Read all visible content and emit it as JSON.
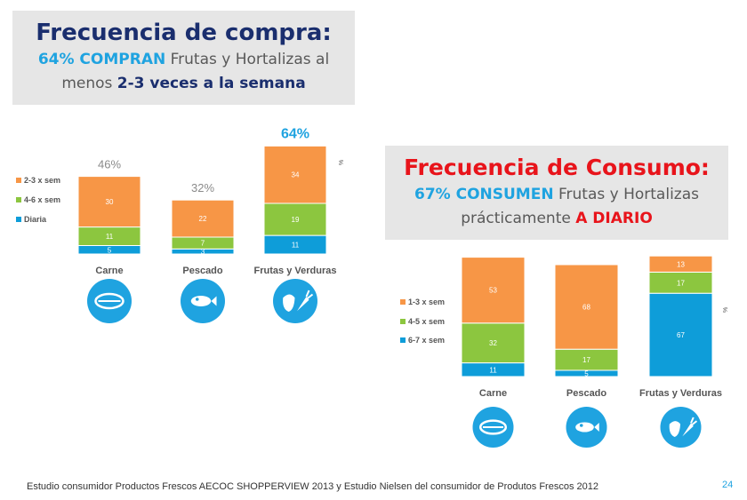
{
  "colors": {
    "orange": "#f79646",
    "green": "#8cc63f",
    "blue": "#0e9dd9",
    "title_dark": "#1a2e6e",
    "title_red": "#e8141b",
    "accent": "#1fa3e0",
    "gray_text": "#595959"
  },
  "compra": {
    "title": "Frecuencia de compra:",
    "sub_hl1": "64% COMPRAN",
    "sub_text1": " Frutas y Hortalizas al",
    "sub_text2": "menos ",
    "sub_hl2": "2-3 veces a la semana"
  },
  "consumo": {
    "title": "Frecuencia de Consumo:",
    "sub_hl1": "67% CONSUMEN",
    "sub_text1": " Frutas y Hortalizas",
    "sub_text2": "prácticamente ",
    "sub_hl2": "A DIARIO"
  },
  "chart_data": [
    {
      "type": "bar",
      "stacked": true,
      "title": "Frecuencia de compra",
      "categories": [
        "Carne",
        "Pescado",
        "Frutas y Verduras"
      ],
      "totals": [
        "46%",
        "32%",
        "64%"
      ],
      "series": [
        {
          "name": "Diaria",
          "values": [
            5,
            3,
            11
          ],
          "color": "#0e9dd9"
        },
        {
          "name": "4-6 x sem",
          "values": [
            11,
            7,
            19
          ],
          "color": "#8cc63f"
        },
        {
          "name": "2-3 x sem",
          "values": [
            30,
            22,
            34
          ],
          "color": "#f79646"
        }
      ],
      "legend_order": [
        "2-3 x sem",
        "4-6 x sem",
        "Diaria"
      ],
      "icons": [
        "meat-icon",
        "fish-icon",
        "fruit-vegetable-icon"
      ],
      "side_mark": "%"
    },
    {
      "type": "bar",
      "stacked": true,
      "title": "Frecuencia de Consumo",
      "categories": [
        "Carne",
        "Pescado",
        "Frutas y Verduras"
      ],
      "series": [
        {
          "name": "6-7 x sem",
          "values": [
            11,
            5,
            67
          ],
          "color": "#0e9dd9"
        },
        {
          "name": "4-5 x sem",
          "values": [
            32,
            17,
            17
          ],
          "color": "#8cc63f"
        },
        {
          "name": "1-3 x sem",
          "values": [
            53,
            68,
            13
          ],
          "color": "#f79646"
        }
      ],
      "legend_order": [
        "1-3 x sem",
        "4-5 x sem",
        "6-7 x sem"
      ],
      "icons": [
        "meat-icon",
        "fish-icon",
        "fruit-vegetable-icon"
      ],
      "side_mark": "%"
    }
  ],
  "footer": {
    "source": "Estudio consumidor Productos Frescos AECOC SHOPPERVIEW 2013 y Estudio Nielsen del consumidor de Produtos Frescos 2012",
    "page": "24"
  }
}
